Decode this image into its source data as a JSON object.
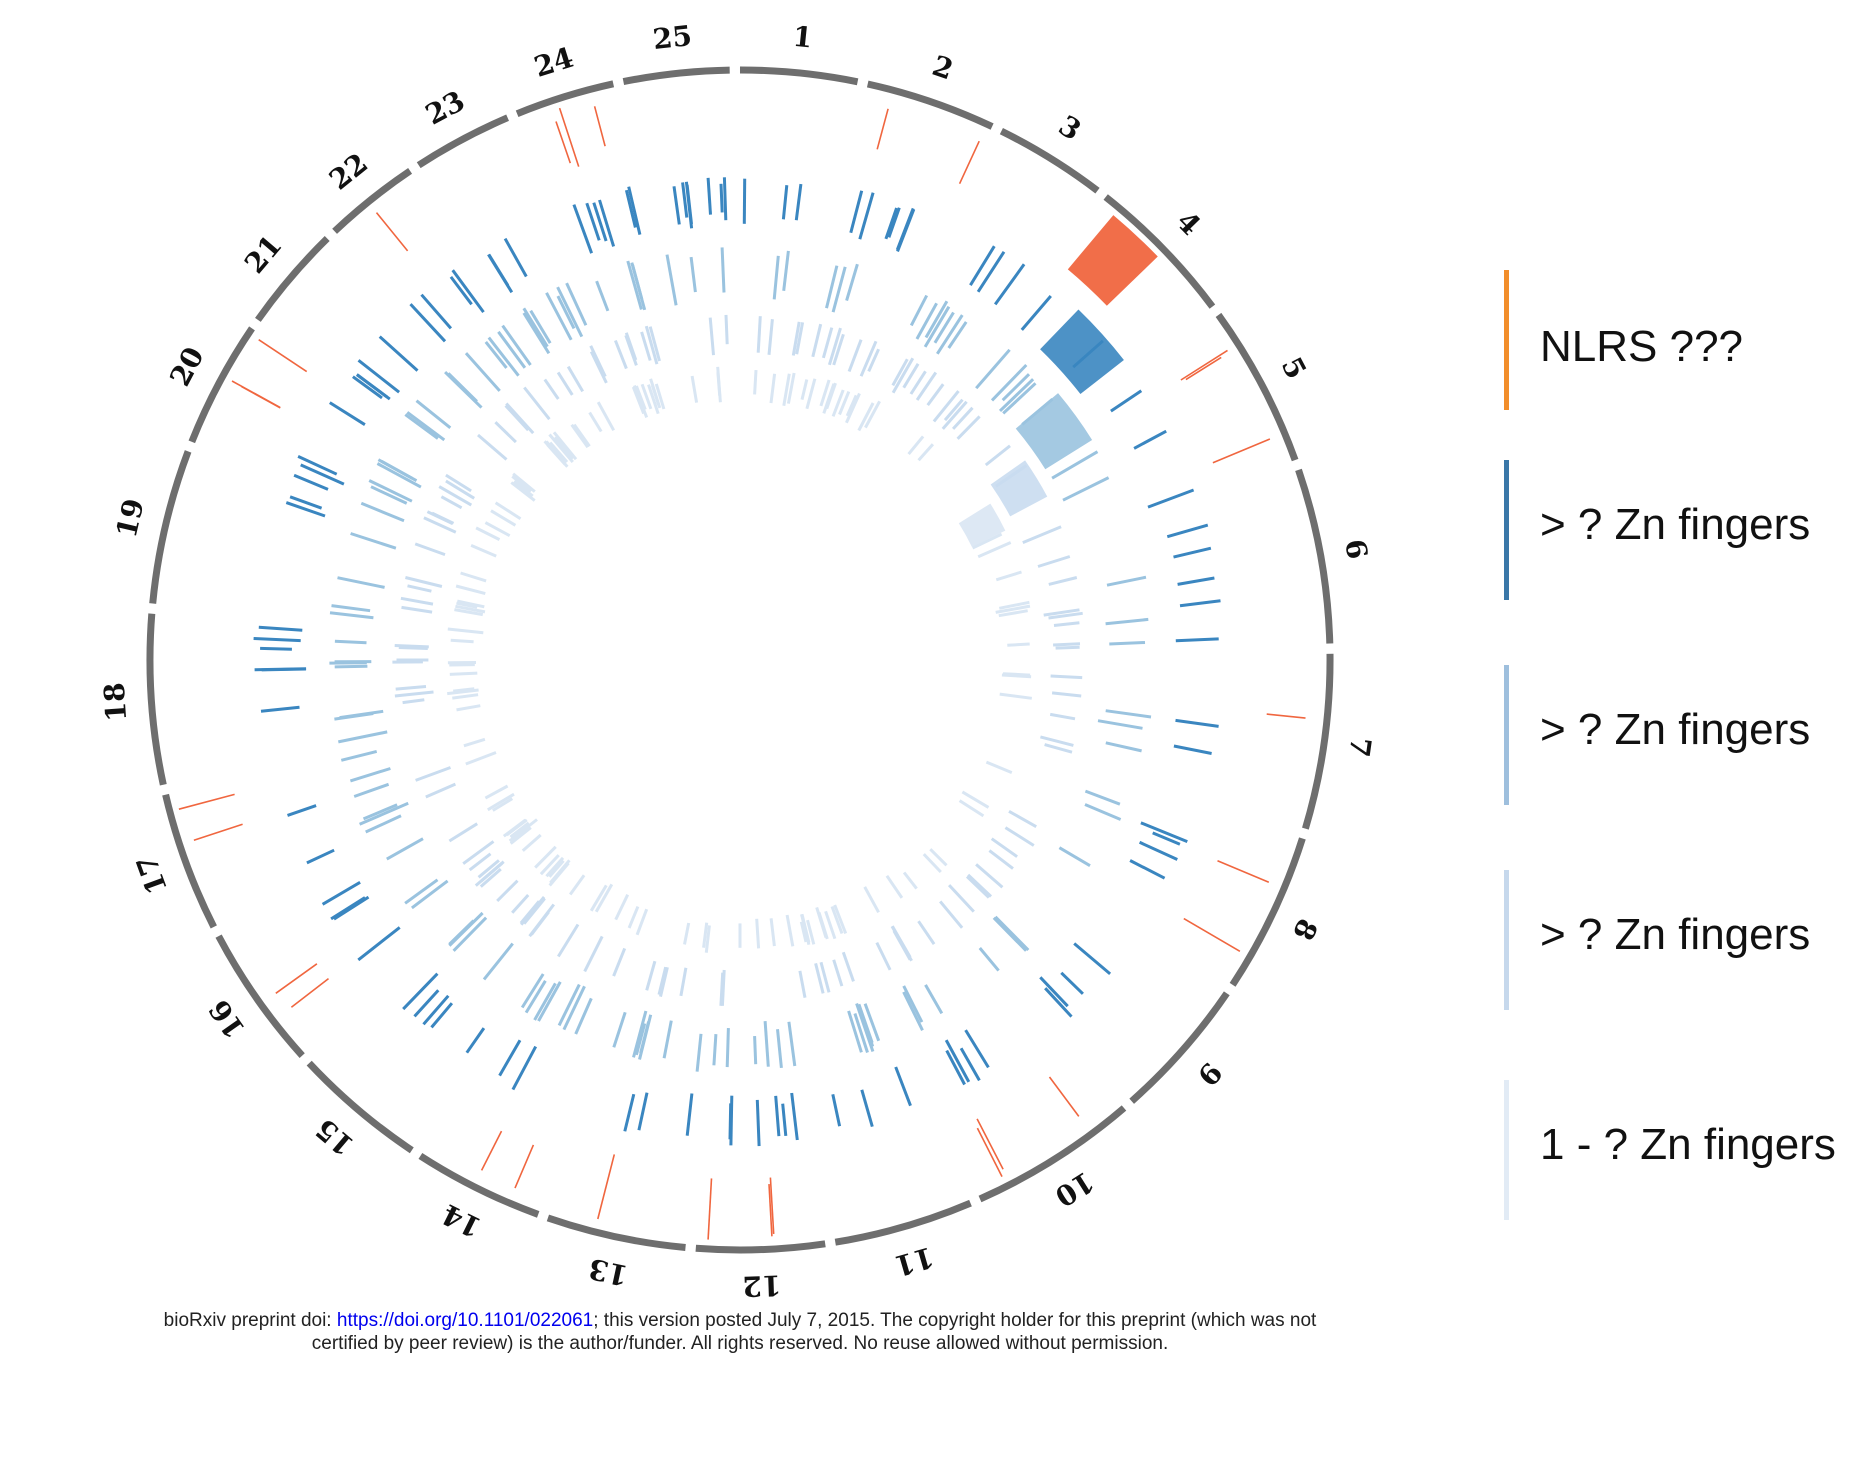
{
  "chromosomes": [
    {
      "label": "1",
      "start": 0,
      "end": 11.5
    },
    {
      "label": "2",
      "start": 12.5,
      "end": 25.3
    },
    {
      "label": "3",
      "start": 26.3,
      "end": 37.3
    },
    {
      "label": "4",
      "start": 38.3,
      "end": 53.2
    },
    {
      "label": "5",
      "start": 54.2,
      "end": 70.2
    },
    {
      "label": "6",
      "start": 71.2,
      "end": 88.4
    },
    {
      "label": "7",
      "start": 89.4,
      "end": 106.6
    },
    {
      "label": "8",
      "start": 107.6,
      "end": 123.4
    },
    {
      "label": "9",
      "start": 124.4,
      "end": 138.4
    },
    {
      "label": "10",
      "start": 139.4,
      "end": 156.0
    },
    {
      "label": "11",
      "start": 157.0,
      "end": 170.7
    },
    {
      "label": "12",
      "start": 171.7,
      "end": 184.3
    },
    {
      "label": "13",
      "start": 185.3,
      "end": 199.0
    },
    {
      "label": "14",
      "start": 200.0,
      "end": 212.8
    },
    {
      "label": "15",
      "start": 213.8,
      "end": 226.9
    },
    {
      "label": "16",
      "start": 227.9,
      "end": 242.1
    },
    {
      "label": "17",
      "start": 243.1,
      "end": 256.8
    },
    {
      "label": "18",
      "start": 257.8,
      "end": 274.5
    },
    {
      "label": "19",
      "start": 275.5,
      "end": 290.7
    },
    {
      "label": "20",
      "start": 291.7,
      "end": 304.2
    },
    {
      "label": "21",
      "start": 305.2,
      "end": 315.6
    },
    {
      "label": "22",
      "start": 316.6,
      "end": 326.0
    },
    {
      "label": "23",
      "start": 327.0,
      "end": 336.8
    },
    {
      "label": "24",
      "start": 337.8,
      "end": 347.6
    },
    {
      "label": "25",
      "start": 348.6,
      "end": 359.0
    }
  ],
  "legend": [
    {
      "label": "NLRS ???",
      "color": "#f28e2b"
    },
    {
      "label": "> ? Zn fingers",
      "color": "#3a77a8"
    },
    {
      "label": "> ? Zn fingers",
      "color": "#9ebfdd"
    },
    {
      "label": "> ? Zn fingers",
      "color": "#c6d8ec"
    },
    {
      "label": "1 - ? Zn fingers",
      "color": "#e2ebf5"
    }
  ],
  "tracks": [
    {
      "name": "nlrs",
      "color": "#f0663f",
      "inner": 850,
      "outer": 968
    },
    {
      "name": "zn-high",
      "color": "#3a86c0",
      "inner": 720,
      "outer": 812
    },
    {
      "name": "zn-mid",
      "color": "#9ac3df",
      "inner": 600,
      "outer": 692
    },
    {
      "name": "zn-low",
      "color": "#c9dcef",
      "inner": 510,
      "outer": 580
    },
    {
      "name": "zn-min",
      "color": "#d9e6f3",
      "inner": 430,
      "outer": 492
    }
  ],
  "notice": {
    "prefix": "bioRxiv preprint doi: ",
    "link": "https://doi.org/10.1101/022061",
    "suffix": "; this version posted July 7, 2015. The copyright holder for this preprint (which was not",
    "line2": "certified by peer review) is the author/funder. All rights reserved. No reuse allowed without permission."
  }
}
